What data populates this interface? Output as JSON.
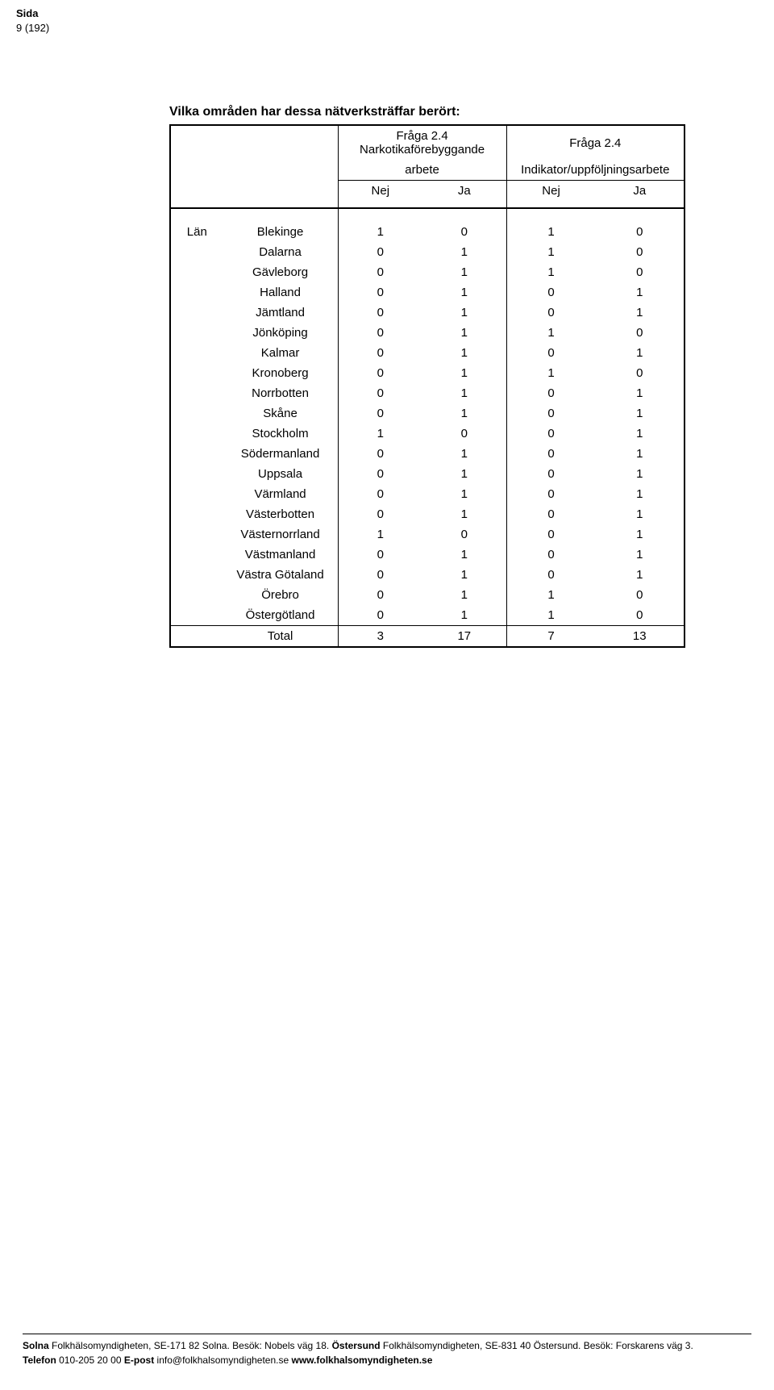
{
  "page_header": {
    "sida": "Sida",
    "page_of": "9 (192)"
  },
  "table": {
    "title": "Vilka områden har dessa nätverksträffar berört:",
    "group1_line1": "Fråga 2.4 Narkotikaförebyggande",
    "group1_line2": "arbete",
    "group2_line1": "Fråga 2.4",
    "group2_line2": "Indikator/uppföljningsarbete",
    "sub_nej": "Nej",
    "sub_ja": "Ja",
    "row_group_label": "Län",
    "rows": [
      {
        "name": "Blekinge",
        "v": [
          1,
          0,
          1,
          0
        ]
      },
      {
        "name": "Dalarna",
        "v": [
          0,
          1,
          1,
          0
        ]
      },
      {
        "name": "Gävleborg",
        "v": [
          0,
          1,
          1,
          0
        ]
      },
      {
        "name": "Halland",
        "v": [
          0,
          1,
          0,
          1
        ]
      },
      {
        "name": "Jämtland",
        "v": [
          0,
          1,
          0,
          1
        ]
      },
      {
        "name": "Jönköping",
        "v": [
          0,
          1,
          1,
          0
        ]
      },
      {
        "name": "Kalmar",
        "v": [
          0,
          1,
          0,
          1
        ]
      },
      {
        "name": "Kronoberg",
        "v": [
          0,
          1,
          1,
          0
        ]
      },
      {
        "name": "Norrbotten",
        "v": [
          0,
          1,
          0,
          1
        ]
      },
      {
        "name": "Skåne",
        "v": [
          0,
          1,
          0,
          1
        ]
      },
      {
        "name": "Stockholm",
        "v": [
          1,
          0,
          0,
          1
        ]
      },
      {
        "name": "Södermanland",
        "v": [
          0,
          1,
          0,
          1
        ]
      },
      {
        "name": "Uppsala",
        "v": [
          0,
          1,
          0,
          1
        ]
      },
      {
        "name": "Värmland",
        "v": [
          0,
          1,
          0,
          1
        ]
      },
      {
        "name": "Västerbotten",
        "v": [
          0,
          1,
          0,
          1
        ]
      },
      {
        "name": "Västernorrland",
        "v": [
          1,
          0,
          0,
          1
        ]
      },
      {
        "name": "Västmanland",
        "v": [
          0,
          1,
          0,
          1
        ]
      },
      {
        "name": "Västra Götaland",
        "v": [
          0,
          1,
          0,
          1
        ]
      },
      {
        "name": "Örebro",
        "v": [
          0,
          1,
          1,
          0
        ]
      },
      {
        "name": "Östergötland",
        "v": [
          0,
          1,
          1,
          0
        ]
      }
    ],
    "total_label": "Total",
    "total": [
      3,
      17,
      7,
      13
    ]
  },
  "footer": {
    "line1_b1": "Solna",
    "line1_t1": " Folkhälsomyndigheten, SE-171 82 Solna. Besök: Nobels väg 18. ",
    "line1_b2": "Östersund",
    "line1_t2": " Folkhälsomyndigheten, SE-831 40 Östersund. Besök: Forskarens väg 3.",
    "line2_b1": "Telefon",
    "line2_t1": " 010-205 20 00 ",
    "line2_b2": "E-post",
    "line2_t2": " info@folkhalsomyndigheten.se ",
    "line2_b3": "www.folkhalsomyndigheten.se"
  }
}
